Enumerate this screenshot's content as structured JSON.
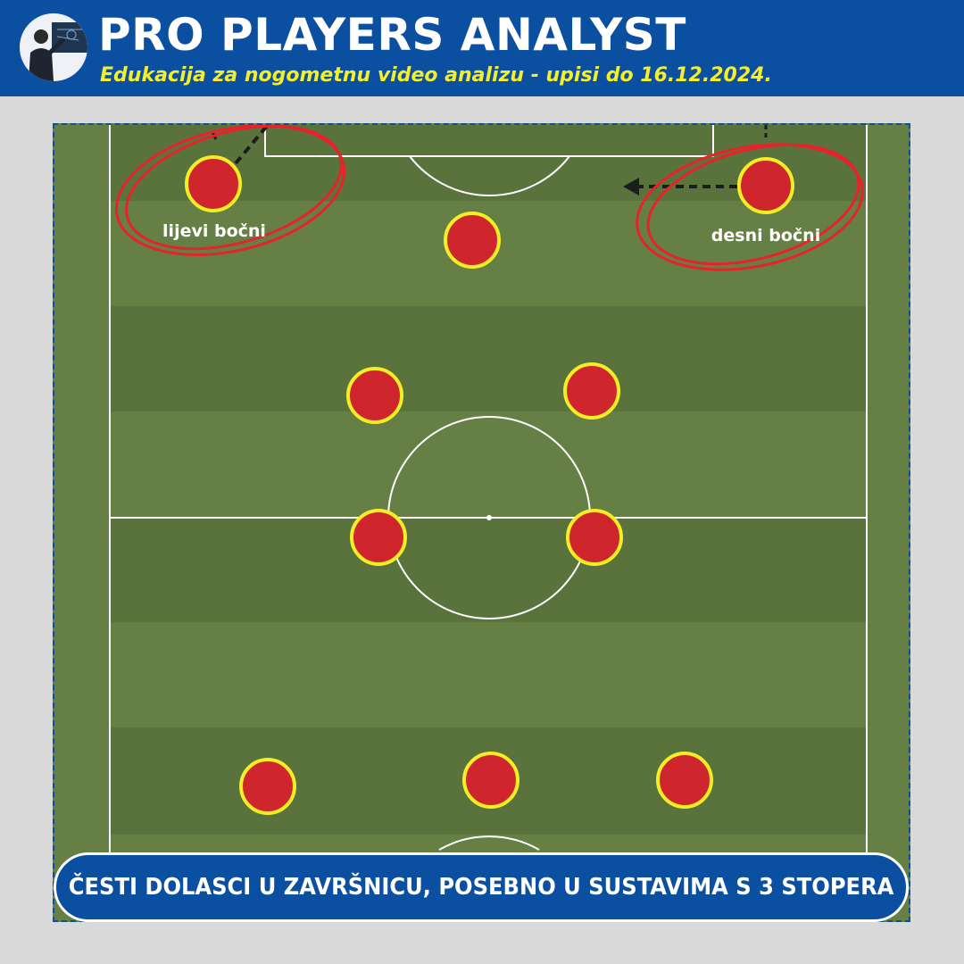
{
  "header": {
    "title": "PRO PLAYERS ANALYST",
    "subtitle": "Edukacija za nogometnu video analizu - upisi do 16.12.2024.",
    "avatar_icon": "presenter-at-board-icon"
  },
  "pitch": {
    "colors": {
      "light_stripe": "#657f44",
      "dark_stripe": "#5a733c",
      "lines": "#ffffff",
      "player_fill": "#cf252d",
      "player_ring": "#f4ee25",
      "highlight": "#e8222a"
    },
    "players": [
      {
        "id": "left-back",
        "label": "lijevi bočni"
      },
      {
        "id": "right-back",
        "label": "desni bočni"
      },
      {
        "id": "forward"
      },
      {
        "id": "left-midfielder"
      },
      {
        "id": "right-midfielder"
      },
      {
        "id": "left-central-midfielder"
      },
      {
        "id": "right-central-midfielder"
      },
      {
        "id": "left-center-back"
      },
      {
        "id": "middle-center-back"
      },
      {
        "id": "right-center-back"
      }
    ]
  },
  "caption": {
    "text": "ČESTI DOLASCI U ZAVRŠNICU, POSEBNO U SUSTAVIMA S 3 STOPERA"
  }
}
